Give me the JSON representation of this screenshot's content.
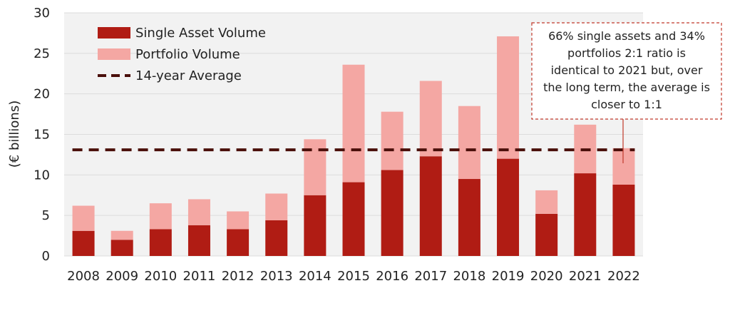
{
  "chart_data": {
    "type": "bar",
    "stacked": true,
    "categories": [
      "2008",
      "2009",
      "2010",
      "2011",
      "2012",
      "2013",
      "2014",
      "2015",
      "2016",
      "2017",
      "2018",
      "2019",
      "2020",
      "2021",
      "2022"
    ],
    "series": [
      {
        "name": "Single Asset Volume",
        "color": "#b01c14",
        "values": [
          3.1,
          2.0,
          3.3,
          3.8,
          3.3,
          4.4,
          7.5,
          9.1,
          10.6,
          12.3,
          9.5,
          12.0,
          5.2,
          10.2,
          8.8
        ]
      },
      {
        "name": "Portfolio Volume",
        "color": "#f4a7a3",
        "values": [
          3.1,
          1.1,
          3.2,
          3.2,
          2.2,
          3.3,
          6.9,
          14.5,
          7.2,
          9.3,
          9.0,
          15.1,
          2.9,
          6.0,
          4.5
        ]
      }
    ],
    "average": {
      "name": "14-year Average",
      "value": 13.1,
      "color": "#4a0f0a"
    },
    "ylabel": "(€ billions)",
    "xlabel": "",
    "ylim": [
      0,
      30
    ],
    "yticks": [
      0,
      5,
      10,
      15,
      20,
      25,
      30
    ],
    "grid": true,
    "legend_position": "top-left",
    "annotation": {
      "lines": [
        "66% single assets and 34%",
        "portfolios 2:1 ratio is",
        "identical to 2021 but, over",
        "the long term, the average is",
        "closer to 1:1"
      ],
      "target_category": "2022",
      "border_color": "#c0392b"
    }
  }
}
